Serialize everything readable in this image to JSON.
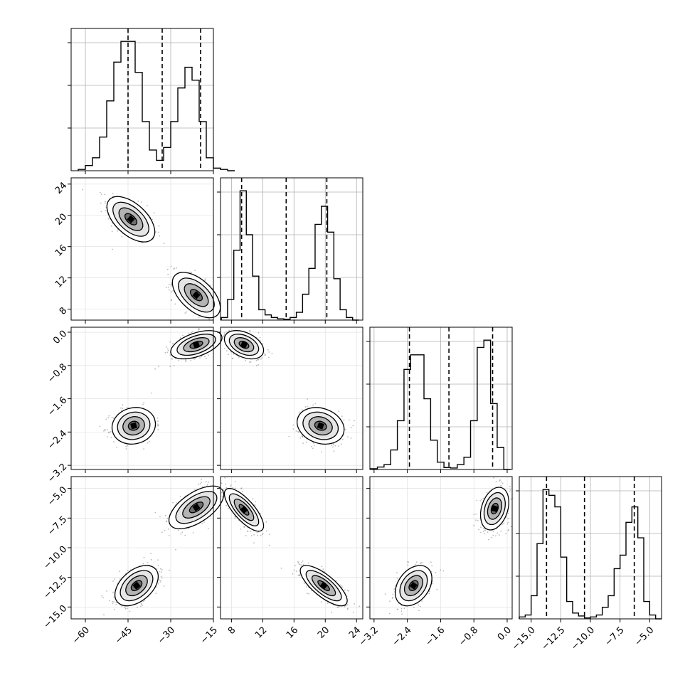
{
  "chart_data": {
    "type": "corner",
    "title": "",
    "axes": [
      {
        "ticks": [
          -60,
          -45,
          -30,
          -15
        ],
        "tick_labels": [
          "−60",
          "−45",
          "−30",
          "−15"
        ],
        "range": [
          -65,
          -15
        ]
      },
      {
        "ticks": [
          8,
          12,
          16,
          20,
          24
        ],
        "tick_labels": [
          "8",
          "12",
          "16",
          "20",
          "24"
        ],
        "range": [
          6.6,
          24.8
        ]
      },
      {
        "ticks": [
          -3.2,
          -2.4,
          -1.6,
          -0.8,
          0.0
        ],
        "tick_labels": [
          "−3.2",
          "−2.4",
          "−1.6",
          "−0.8",
          "0.0"
        ],
        "range": [
          -3.3,
          0.12
        ]
      },
      {
        "ticks": [
          -15.0,
          -12.5,
          -10.0,
          -7.5,
          -5.0
        ],
        "tick_labels": [
          "−15.0",
          "−12.5",
          "−10.0",
          "−7.5",
          "−5.0"
        ],
        "range": [
          -16.0,
          -4.0
        ]
      }
    ],
    "quantiles": [
      [
        -45.0,
        -33.0,
        -19.5
      ],
      [
        9.3,
        15.0,
        20.2
      ],
      [
        -2.35,
        -1.4,
        -0.35
      ],
      [
        -13.7,
        -10.5,
        -6.3
      ]
    ],
    "histograms": [
      {
        "bins": [
          -62.5,
          -60,
          -57.5,
          -55,
          -52.5,
          -50,
          -47.5,
          -45,
          -42.5,
          -40,
          -37.5,
          -35,
          -32.5,
          -30,
          -27.5,
          -25,
          -22.5,
          -20,
          -17.5,
          -15,
          -12.5,
          -10,
          -7.5
        ],
        "counts": [
          0.5,
          2,
          5,
          13,
          27,
          42,
          50,
          50,
          38,
          19,
          8,
          4,
          9,
          19,
          32,
          40,
          35,
          19,
          5,
          1,
          0.5,
          0
        ]
      },
      {
        "bins": [
          6.7,
          7.5,
          8.3,
          9.1,
          9.9,
          10.7,
          11.5,
          12.3,
          13.1,
          13.9,
          14.7,
          15.5,
          16.3,
          17.1,
          17.9,
          18.7,
          19.5,
          20.3,
          21.1,
          21.9,
          22.7,
          23.5,
          24.3
        ],
        "counts": [
          1,
          8,
          27,
          50,
          33,
          17,
          4,
          2,
          1,
          0.5,
          0.3,
          1,
          3,
          10,
          20,
          37,
          44,
          34,
          16,
          4,
          1,
          0
        ]
      },
      {
        "bins": [
          -3.28,
          -3.12,
          -2.96,
          -2.8,
          -2.64,
          -2.48,
          -2.32,
          -2.16,
          -2.0,
          -1.84,
          -1.68,
          -1.52,
          -1.36,
          -1.2,
          -1.04,
          -0.88,
          -0.72,
          -0.56,
          -0.4,
          -0.24,
          -0.08,
          0.08
        ],
        "counts": [
          0.3,
          1,
          2,
          8,
          20,
          41,
          47,
          47,
          29,
          12,
          3,
          0.8,
          0.6,
          2,
          5,
          20,
          50,
          53,
          27,
          9,
          0
        ]
      },
      {
        "bins": [
          -16.0,
          -15.5,
          -15.0,
          -14.5,
          -14.0,
          -13.5,
          -13.0,
          -12.5,
          -12.0,
          -11.5,
          -11.0,
          -10.5,
          -10.0,
          -9.5,
          -9.0,
          -8.5,
          -8.0,
          -7.5,
          -7.0,
          -6.5,
          -6.0,
          -5.5,
          -5.0,
          -4.5,
          -4.0
        ],
        "counts": [
          1,
          2,
          12,
          39,
          67,
          64,
          58,
          32,
          9,
          3,
          1.5,
          0.5,
          1,
          2,
          6,
          12,
          26,
          33,
          50,
          58,
          42,
          9,
          2,
          0
        ]
      }
    ],
    "pairs": [
      {
        "row": 1,
        "col": 0,
        "clusters": [
          {
            "x": -44,
            "y": 19.5,
            "sx": 4.2,
            "sy": 1.45,
            "rho": -0.55
          },
          {
            "x": -21,
            "y": 9.8,
            "sx": 4.2,
            "sy": 1.45,
            "rho": -0.55
          }
        ]
      },
      {
        "row": 2,
        "col": 0,
        "clusters": [
          {
            "x": -43,
            "y": -2.25,
            "sx": 3.8,
            "sy": 0.22,
            "rho": 0.1
          },
          {
            "x": -21,
            "y": -0.3,
            "sx": 4.5,
            "sy": 0.17,
            "rho": 0.5
          }
        ]
      },
      {
        "row": 2,
        "col": 1,
        "clusters": [
          {
            "x": 9.6,
            "y": -0.3,
            "sx": 1.25,
            "sy": 0.17,
            "rho": -0.4
          },
          {
            "x": 19.4,
            "y": -2.25,
            "sx": 1.5,
            "sy": 0.22,
            "rho": -0.2
          }
        ]
      },
      {
        "row": 3,
        "col": 0,
        "clusters": [
          {
            "x": -42,
            "y": -13.2,
            "sx": 3.8,
            "sy": 0.85,
            "rho": 0.45
          },
          {
            "x": -21,
            "y": -6.6,
            "sx": 4.8,
            "sy": 0.9,
            "rho": 0.6
          }
        ]
      },
      {
        "row": 3,
        "col": 1,
        "clusters": [
          {
            "x": 9.6,
            "y": -6.8,
            "sx": 1.25,
            "sy": 0.9,
            "rho": -0.75
          },
          {
            "x": 19.8,
            "y": -13.2,
            "sx": 1.5,
            "sy": 0.85,
            "rho": -0.75
          }
        ]
      },
      {
        "row": 3,
        "col": 2,
        "clusters": [
          {
            "x": -2.25,
            "y": -13.2,
            "sx": 0.22,
            "sy": 0.85,
            "rho": 0.35
          },
          {
            "x": -0.3,
            "y": -6.7,
            "sx": 0.17,
            "sy": 0.9,
            "rho": 0.3
          }
        ]
      }
    ]
  }
}
